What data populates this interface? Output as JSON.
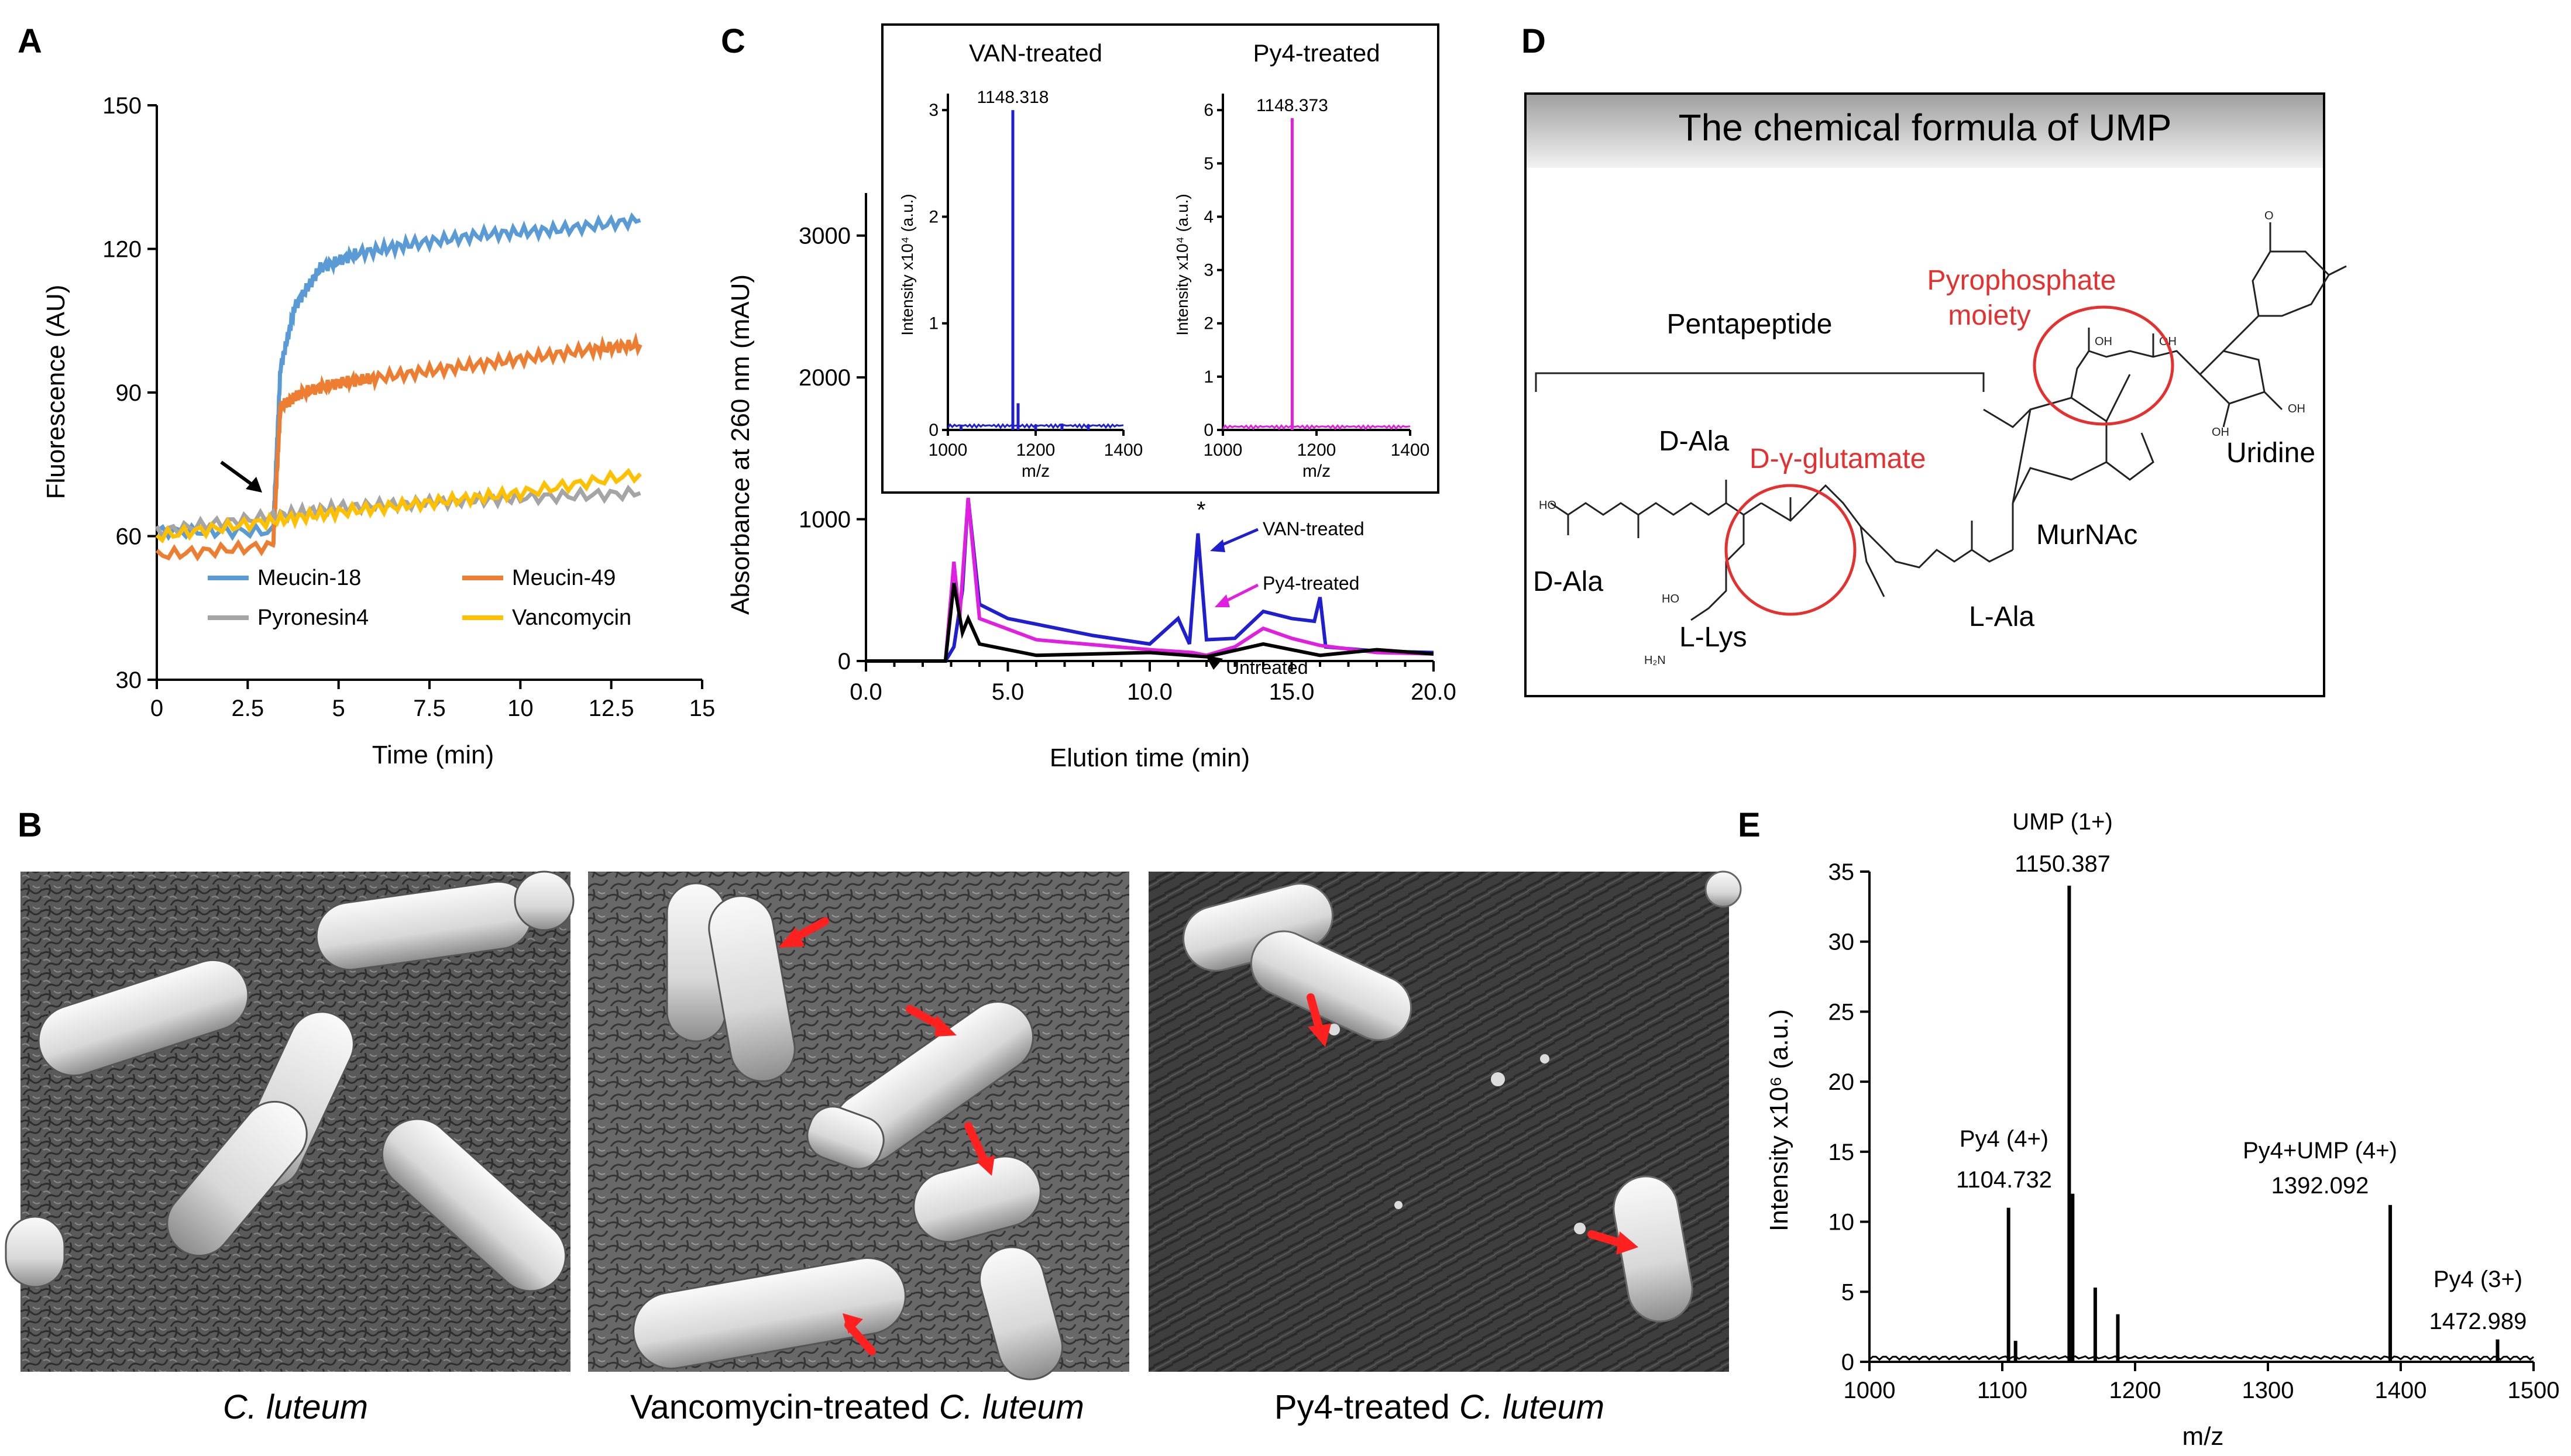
{
  "panels": {
    "A": {
      "label": "A",
      "chart_data": {
        "type": "line",
        "xlabel": "Time (min)",
        "ylabel": "Fluorescence (AU)",
        "xlim": [
          0,
          15
        ],
        "ylim": [
          30,
          150
        ],
        "xticks": [
          "0",
          "2.5",
          "5",
          "7.5",
          "10",
          "12.5",
          "15"
        ],
        "yticks": [
          "30",
          "60",
          "90",
          "120",
          "150"
        ],
        "legend_position": "bottom",
        "series": [
          {
            "name": "Meucin-18",
            "color": "#5b9bd5",
            "x": [
              0,
              3.2,
              3.4,
              3.8,
              4.5,
              5.5,
              7,
              9,
              11,
              13.3
            ],
            "y": [
              61,
              61,
              95,
              108,
              116,
              119,
              121,
              123,
              124,
              126
            ]
          },
          {
            "name": "Meucin-49",
            "color": "#ed7d31",
            "x": [
              0,
              3.2,
              3.4,
              4,
              5,
              6,
              8,
              10,
              12,
              13.3
            ],
            "y": [
              56,
              58,
              87,
              90,
              92,
              93,
              95,
              97,
              99,
              100
            ]
          },
          {
            "name": "Pyronesin4",
            "color": "#a5a5a5",
            "x": [
              0,
              3,
              5,
              7.5,
              10,
              13.3
            ],
            "y": [
              61,
              64,
              66,
              67,
              68,
              69
            ]
          },
          {
            "name": "Vancomycin",
            "color": "#ffc000",
            "x": [
              0,
              3,
              5,
              7.5,
              10,
              13.3
            ],
            "y": [
              60,
              63,
              65,
              67,
              69,
              73
            ]
          }
        ]
      }
    },
    "B": {
      "label": "B",
      "images": [
        {
          "caption_italic": "C. luteum",
          "caption_prefix": ""
        },
        {
          "caption_prefix": "Vancomycin-treated ",
          "caption_italic": "C. luteum"
        },
        {
          "caption_prefix": "Py4-treated ",
          "caption_italic": "C. luteum"
        }
      ]
    },
    "C": {
      "label": "C",
      "chart_data": {
        "type": "line",
        "xlabel": "Elution time (min)",
        "ylabel": "Absorbance at 260 nm (mAU)",
        "xlim": [
          0,
          20
        ],
        "ylim": [
          0,
          3300
        ],
        "xticks": [
          "0.0",
          "5.0",
          "10.0",
          "15.0",
          "20.0"
        ],
        "yticks": [
          "0",
          "1000",
          "2000",
          "3000"
        ],
        "annotations": [
          "VAN-treated",
          "Py4-treated",
          "Untreated",
          "*"
        ],
        "series": [
          {
            "name": "VAN-treated",
            "color": "#1f1fd0",
            "x": [
              0,
              2.8,
              3.1,
              3.4,
              3.6,
              4,
              5,
              8,
              10,
              11,
              11.4,
              11.7,
              12,
              13,
              14,
              15,
              15.8,
              16,
              16.2,
              18,
              20
            ],
            "y": [
              0,
              0,
              100,
              500,
              1150,
              400,
              300,
              180,
              120,
              300,
              120,
              900,
              150,
              160,
              350,
              300,
              280,
              450,
              100,
              70,
              60
            ]
          },
          {
            "name": "Py4-treated",
            "color": "#e020e0",
            "x": [
              0,
              2.8,
              3.1,
              3.3,
              3.6,
              4,
              6,
              10,
              11.5,
              12,
              13,
              14,
              15,
              16,
              18,
              20
            ],
            "y": [
              0,
              0,
              700,
              300,
              1150,
              300,
              150,
              80,
              60,
              40,
              100,
              230,
              160,
              110,
              60,
              50
            ]
          },
          {
            "name": "Untreated",
            "color": "#000000",
            "x": [
              0,
              2.8,
              3.1,
              3.4,
              3.6,
              4,
              6,
              10,
              12,
              14,
              16,
              18,
              20
            ],
            "y": [
              0,
              0,
              550,
              200,
              300,
              120,
              40,
              60,
              30,
              120,
              40,
              80,
              50
            ]
          }
        ],
        "insets": [
          {
            "title": "VAN-treated",
            "peak_label": "1148.318",
            "color": "#1f1fd0",
            "xlabel": "m/z",
            "ylabel": "Intensity x10⁴ (a.u.)",
            "xticks": [
              "1000",
              "1200",
              "1400"
            ],
            "yticks": [
              "0",
              "1",
              "2",
              "3"
            ],
            "xlim": [
              1000,
              1400
            ],
            "ylim": [
              0,
              3.1
            ],
            "peaks_x": [
              1148,
              1160,
              1030,
              1200,
              1260,
              1320
            ],
            "peaks_y": [
              3.0,
              0.25,
              0.05,
              0.05,
              0.06,
              0.05
            ]
          },
          {
            "title": "Py4-treated",
            "peak_label": "1148.373",
            "color": "#e020e0",
            "xlabel": "m/z",
            "ylabel": "Intensity x10⁴ (a.u.)",
            "xticks": [
              "1000",
              "1200",
              "1400"
            ],
            "yticks": [
              "0",
              "1",
              "2",
              "3",
              "4",
              "5",
              "6"
            ],
            "xlim": [
              1000,
              1400
            ],
            "ylim": [
              0,
              6.2
            ],
            "peaks_x": [
              1148
            ],
            "peaks_y": [
              5.85
            ]
          }
        ]
      }
    },
    "D": {
      "label": "D",
      "title": "The chemical formula of UMP",
      "labels": {
        "pentapeptide": "Pentapeptide",
        "pyrophosphate_1": "Pyrophosphate",
        "pyrophosphate_2": "moiety",
        "d_ala_top": "D-Ala",
        "d_ala_left": "D-Ala",
        "d_glu": "D-γ-glutamate",
        "l_lys": "L-Lys",
        "l_ala": "L-Ala",
        "murnac": "MurNAc",
        "uridine": "Uridine"
      }
    },
    "E": {
      "label": "E",
      "chart_data": {
        "type": "bar",
        "xlabel": "m/z",
        "ylabel": "Intensity x10⁶ (a.u.)",
        "xlim": [
          1000,
          1500
        ],
        "ylim": [
          0,
          35
        ],
        "xticks": [
          "1000",
          "1100",
          "1200",
          "1300",
          "1400",
          "1500"
        ],
        "yticks": [
          "0",
          "5",
          "10",
          "15",
          "20",
          "25",
          "30",
          "35"
        ],
        "peaks_x": [
          1104.7,
          1110,
          1150.4,
          1153,
          1170,
          1187,
          1392.1,
          1472.9
        ],
        "peaks_y": [
          11,
          1.5,
          34,
          12,
          5.3,
          3.4,
          11.2,
          1.6
        ],
        "annotations": [
          {
            "line1": "UMP (1+)",
            "line2": "1150.387",
            "color": "#000000"
          },
          {
            "line1": "Py4 (4+)",
            "line2": "1104.732",
            "color": "#000000"
          },
          {
            "line1": "Py4+UMP (4+)",
            "line2": "1392.092",
            "color": "#e53030"
          },
          {
            "line1": "Py4 (3+)",
            "line2": "1472.989",
            "color": "#000000"
          }
        ]
      }
    }
  }
}
